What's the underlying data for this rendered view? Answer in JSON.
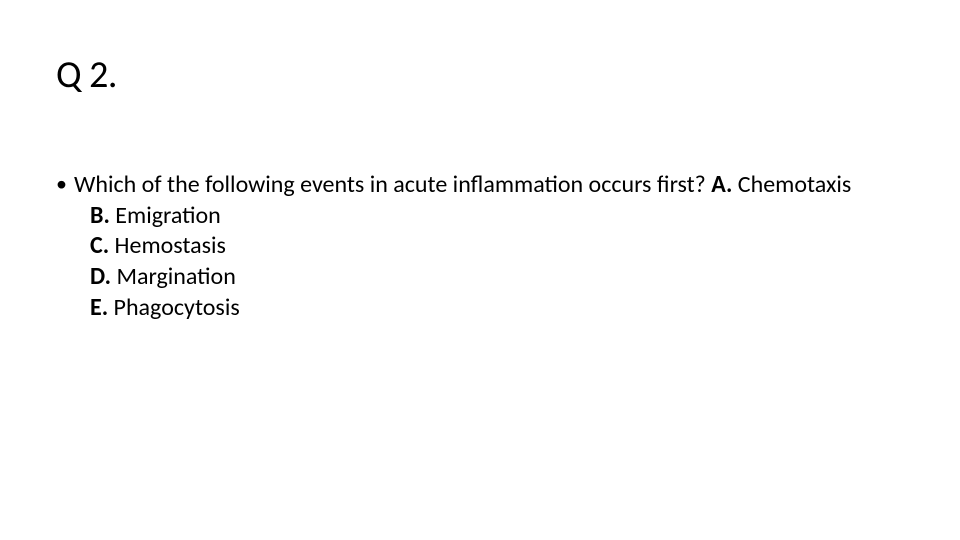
{
  "colors": {
    "background": "#ffffff",
    "text": "#000000"
  },
  "typography": {
    "title_fontsize_pt": 28,
    "body_fontsize_pt": 18,
    "font_family": "Calibri"
  },
  "title": "Q 2.",
  "question": {
    "stem": "Which of the following events in acute inflammation occurs first? ",
    "option_a_label": "A.",
    "option_a_text": " Chemotaxis",
    "options_rest": [
      {
        "label": "B.",
        "text": "  Emigration"
      },
      {
        "label": "C.",
        "text": "  Hemostasis"
      },
      {
        "label": "D.",
        "text": "  Margination"
      },
      {
        "label": "E.",
        "text": "  Phagocytosis"
      }
    ]
  },
  "bullet_glyph": "•"
}
